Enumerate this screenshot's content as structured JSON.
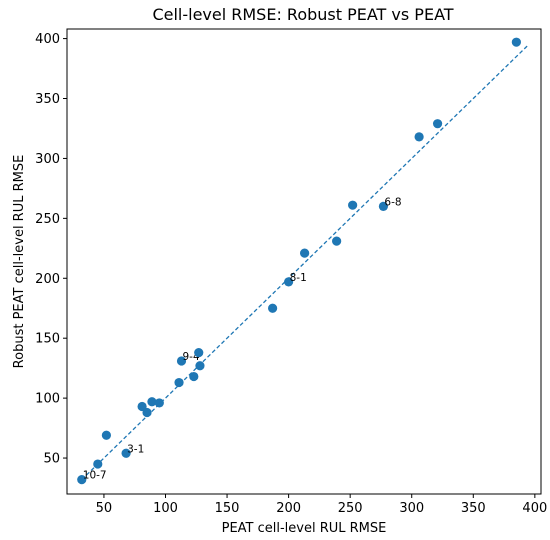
{
  "chart_data": {
    "type": "scatter",
    "title": "Cell-level RMSE: Robust PEAT vs PEAT",
    "xlabel": "PEAT cell-level RUL RMSE",
    "ylabel": "Robust PEAT cell-level RUL RMSE",
    "xlim": [
      20,
      405
    ],
    "ylim": [
      20,
      408
    ],
    "xticks": [
      50,
      100,
      150,
      200,
      250,
      300,
      350,
      400
    ],
    "yticks": [
      50,
      100,
      150,
      200,
      250,
      300,
      350,
      400
    ],
    "grid": false,
    "legend": "none",
    "point_color": "#1f77b4",
    "reference_line": {
      "style": "dashed",
      "color": "#1f77b4",
      "from": [
        32,
        32
      ],
      "to": [
        395,
        395
      ]
    },
    "points": [
      {
        "x": 32,
        "y": 32,
        "label": "10-7"
      },
      {
        "x": 45,
        "y": 45,
        "label": ""
      },
      {
        "x": 52,
        "y": 69,
        "label": ""
      },
      {
        "x": 68,
        "y": 54,
        "label": "3-1"
      },
      {
        "x": 81,
        "y": 93,
        "label": ""
      },
      {
        "x": 85,
        "y": 88,
        "label": ""
      },
      {
        "x": 89,
        "y": 97,
        "label": ""
      },
      {
        "x": 95,
        "y": 96,
        "label": ""
      },
      {
        "x": 111,
        "y": 113,
        "label": ""
      },
      {
        "x": 113,
        "y": 131,
        "label": "9-4"
      },
      {
        "x": 123,
        "y": 118,
        "label": ""
      },
      {
        "x": 127,
        "y": 138,
        "label": ""
      },
      {
        "x": 128,
        "y": 127,
        "label": ""
      },
      {
        "x": 187,
        "y": 175,
        "label": ""
      },
      {
        "x": 200,
        "y": 197,
        "label": "8-1"
      },
      {
        "x": 213,
        "y": 221,
        "label": ""
      },
      {
        "x": 239,
        "y": 231,
        "label": ""
      },
      {
        "x": 252,
        "y": 261,
        "label": ""
      },
      {
        "x": 277,
        "y": 260,
        "label": "6-8"
      },
      {
        "x": 306,
        "y": 318,
        "label": ""
      },
      {
        "x": 321,
        "y": 329,
        "label": ""
      },
      {
        "x": 385,
        "y": 397,
        "label": ""
      }
    ]
  }
}
